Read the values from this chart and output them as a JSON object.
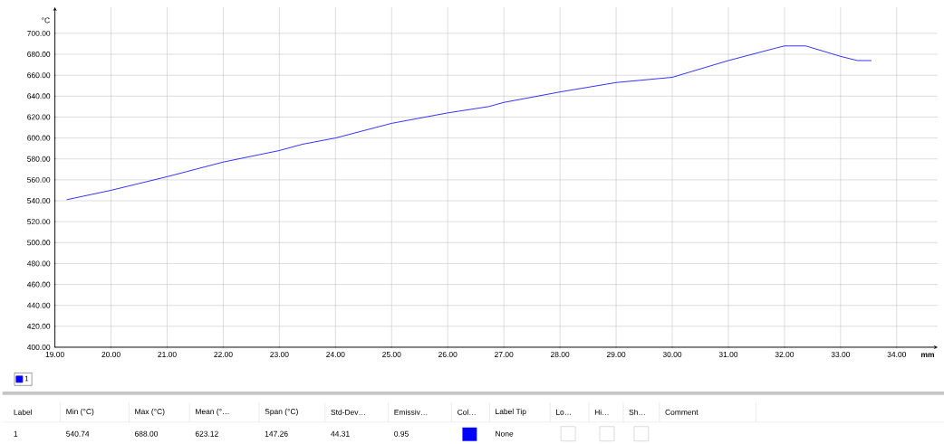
{
  "chart_data": {
    "type": "line",
    "xlabel": "mm",
    "ylabel": "°C",
    "series": [
      {
        "name": "1",
        "color": "#0000ff",
        "x": [
          19.21,
          20.0,
          21.0,
          22.0,
          23.0,
          23.41,
          24.0,
          25.0,
          26.0,
          26.73,
          27.0,
          28.0,
          29.0,
          30.0,
          31.0,
          31.85,
          32.0,
          32.38,
          33.0,
          33.3,
          33.55
        ],
        "values": [
          541,
          550,
          563,
          577,
          588,
          594,
          600,
          614,
          624,
          630,
          634,
          644,
          653,
          658,
          674,
          686,
          688,
          688,
          678,
          674,
          674
        ]
      }
    ],
    "xlim": [
      19,
      34.73
    ],
    "ylim": [
      400,
      725
    ],
    "xticks": [
      {
        "value": 19,
        "label": "19.00"
      },
      {
        "value": 20,
        "label": "20.00"
      },
      {
        "value": 21,
        "label": "21.00"
      },
      {
        "value": 22,
        "label": "22.00"
      },
      {
        "value": 23,
        "label": "23.00"
      },
      {
        "value": 24,
        "label": "24.00"
      },
      {
        "value": 25,
        "label": "25.00"
      },
      {
        "value": 26,
        "label": "26.00"
      },
      {
        "value": 27,
        "label": "27.00"
      },
      {
        "value": 28,
        "label": "28.00"
      },
      {
        "value": 29,
        "label": "29.00"
      },
      {
        "value": 30,
        "label": "30.00"
      },
      {
        "value": 31,
        "label": "31.00"
      },
      {
        "value": 32,
        "label": "32.00"
      },
      {
        "value": 33,
        "label": "33.00"
      },
      {
        "value": 34,
        "label": "34.00"
      }
    ],
    "yticks": [
      {
        "value": 400,
        "label": "400.00"
      },
      {
        "value": 420,
        "label": "420.00"
      },
      {
        "value": 440,
        "label": "440.00"
      },
      {
        "value": 460,
        "label": "460.00"
      },
      {
        "value": 480,
        "label": "480.00"
      },
      {
        "value": 500,
        "label": "500.00"
      },
      {
        "value": 520,
        "label": "520.00"
      },
      {
        "value": 540,
        "label": "540.00"
      },
      {
        "value": 560,
        "label": "560.00"
      },
      {
        "value": 580,
        "label": "580.00"
      },
      {
        "value": 600,
        "label": "600.00"
      },
      {
        "value": 620,
        "label": "620.00"
      },
      {
        "value": 640,
        "label": "640.00"
      },
      {
        "value": 660,
        "label": "660.00"
      },
      {
        "value": 680,
        "label": "680.00"
      },
      {
        "value": 700,
        "label": "700.00"
      }
    ],
    "grid": true,
    "legend": "bottom left",
    "marker": "none",
    "line_style": "solid",
    "annotations": [
      "Label",
      "Min (°C)",
      "Max (°C)",
      "Mean (°…",
      "Span (°C)",
      "Std-Dev…",
      "Emissiv…",
      "Col…",
      "Label Tip",
      "Lo…",
      "Hi…",
      "Sh…",
      "Comment",
      "1",
      "540.74",
      "688.00",
      "623.12",
      "147.26",
      "44.31",
      "0.95",
      "None"
    ]
  }
}
